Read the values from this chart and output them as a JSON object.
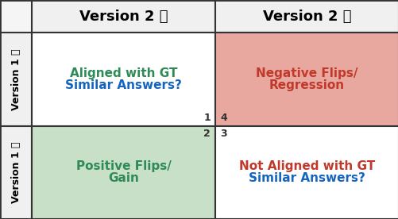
{
  "col_headers": [
    "Version 2 ✅",
    "Version 2 ❌"
  ],
  "row_headers": [
    "Version 1 ✅",
    "Version 1 ❌"
  ],
  "cell_colors": [
    [
      "#ffffff",
      "#e8a8a0"
    ],
    [
      "#c8dfc8",
      "#ffffff"
    ]
  ],
  "cell_texts": [
    [
      "Aligned with GT\nSimilar Answers?",
      "Negative Flips/\nRegression"
    ],
    [
      "Positive Flips/\nGain",
      "Not Aligned with GT\nSimilar Answers?"
    ]
  ],
  "cell_text_colors": [
    [
      [
        "#2e8b57",
        "#1565c0"
      ],
      [
        "#c0392b",
        "#c0392b"
      ]
    ],
    [
      [
        "#2e8b57",
        "#2e8b57"
      ],
      [
        "#c0392b",
        "#1565c0"
      ]
    ]
  ],
  "corner_numbers": [
    [
      "1",
      "4"
    ],
    [
      "2",
      "3"
    ]
  ],
  "corner_number_color": "#333333",
  "header_bg": "#f0f0f0",
  "grid_color": "#333333",
  "col_header_colors": [
    "#000000",
    "#000000"
  ],
  "figsize": [
    5.02,
    2.76
  ],
  "dpi": 100
}
